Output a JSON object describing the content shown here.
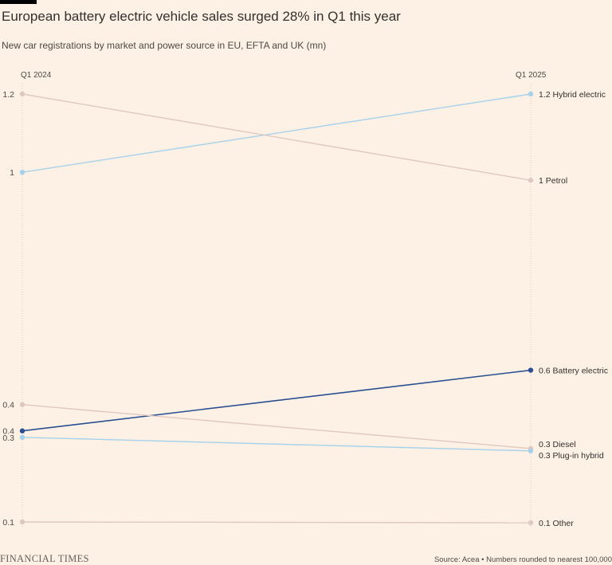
{
  "header": {
    "title": "European battery electric vehicle sales surged 28% in Q1 this year",
    "subtitle": "New car registrations by market and power source in EU, EFTA and UK (mn)"
  },
  "footer": {
    "brand": "FINANCIAL TIMES",
    "source": "Source: Acea • Numbers rounded to nearest 100,000"
  },
  "chart_data": {
    "type": "slope",
    "columns": [
      "Q1 2024",
      "Q1 2025"
    ],
    "series": [
      {
        "name": "Hybrid electric",
        "start": 1.0,
        "end": 1.2,
        "start_label": "1",
        "end_label": "1.2 Hybrid electric",
        "color": "#a6d1eb"
      },
      {
        "name": "Petrol",
        "start": 1.2,
        "end": 1.0,
        "start_label": "1.2",
        "end_label": "1 Petrol",
        "color": "#dec8c0"
      },
      {
        "name": "Battery electric",
        "start": 0.4,
        "end": 0.6,
        "start_label": "0.4",
        "end_label": "0.6 Battery electric",
        "color": "#2a5092"
      },
      {
        "name": "Diesel",
        "start": 0.4,
        "end": 0.3,
        "start_label": "0.4",
        "end_label": "0.3 Diesel",
        "color": "#dec8c0"
      },
      {
        "name": "Plug-in hybrid",
        "start": 0.3,
        "end": 0.3,
        "start_label": "0.3",
        "end_label": "0.3 Plug-in hybrid",
        "color": "#a6d1eb"
      },
      {
        "name": "Other",
        "start": 0.1,
        "end": 0.1,
        "start_label": "0.1",
        "end_label": "0.1 Other",
        "color": "#dec8c0"
      }
    ]
  }
}
